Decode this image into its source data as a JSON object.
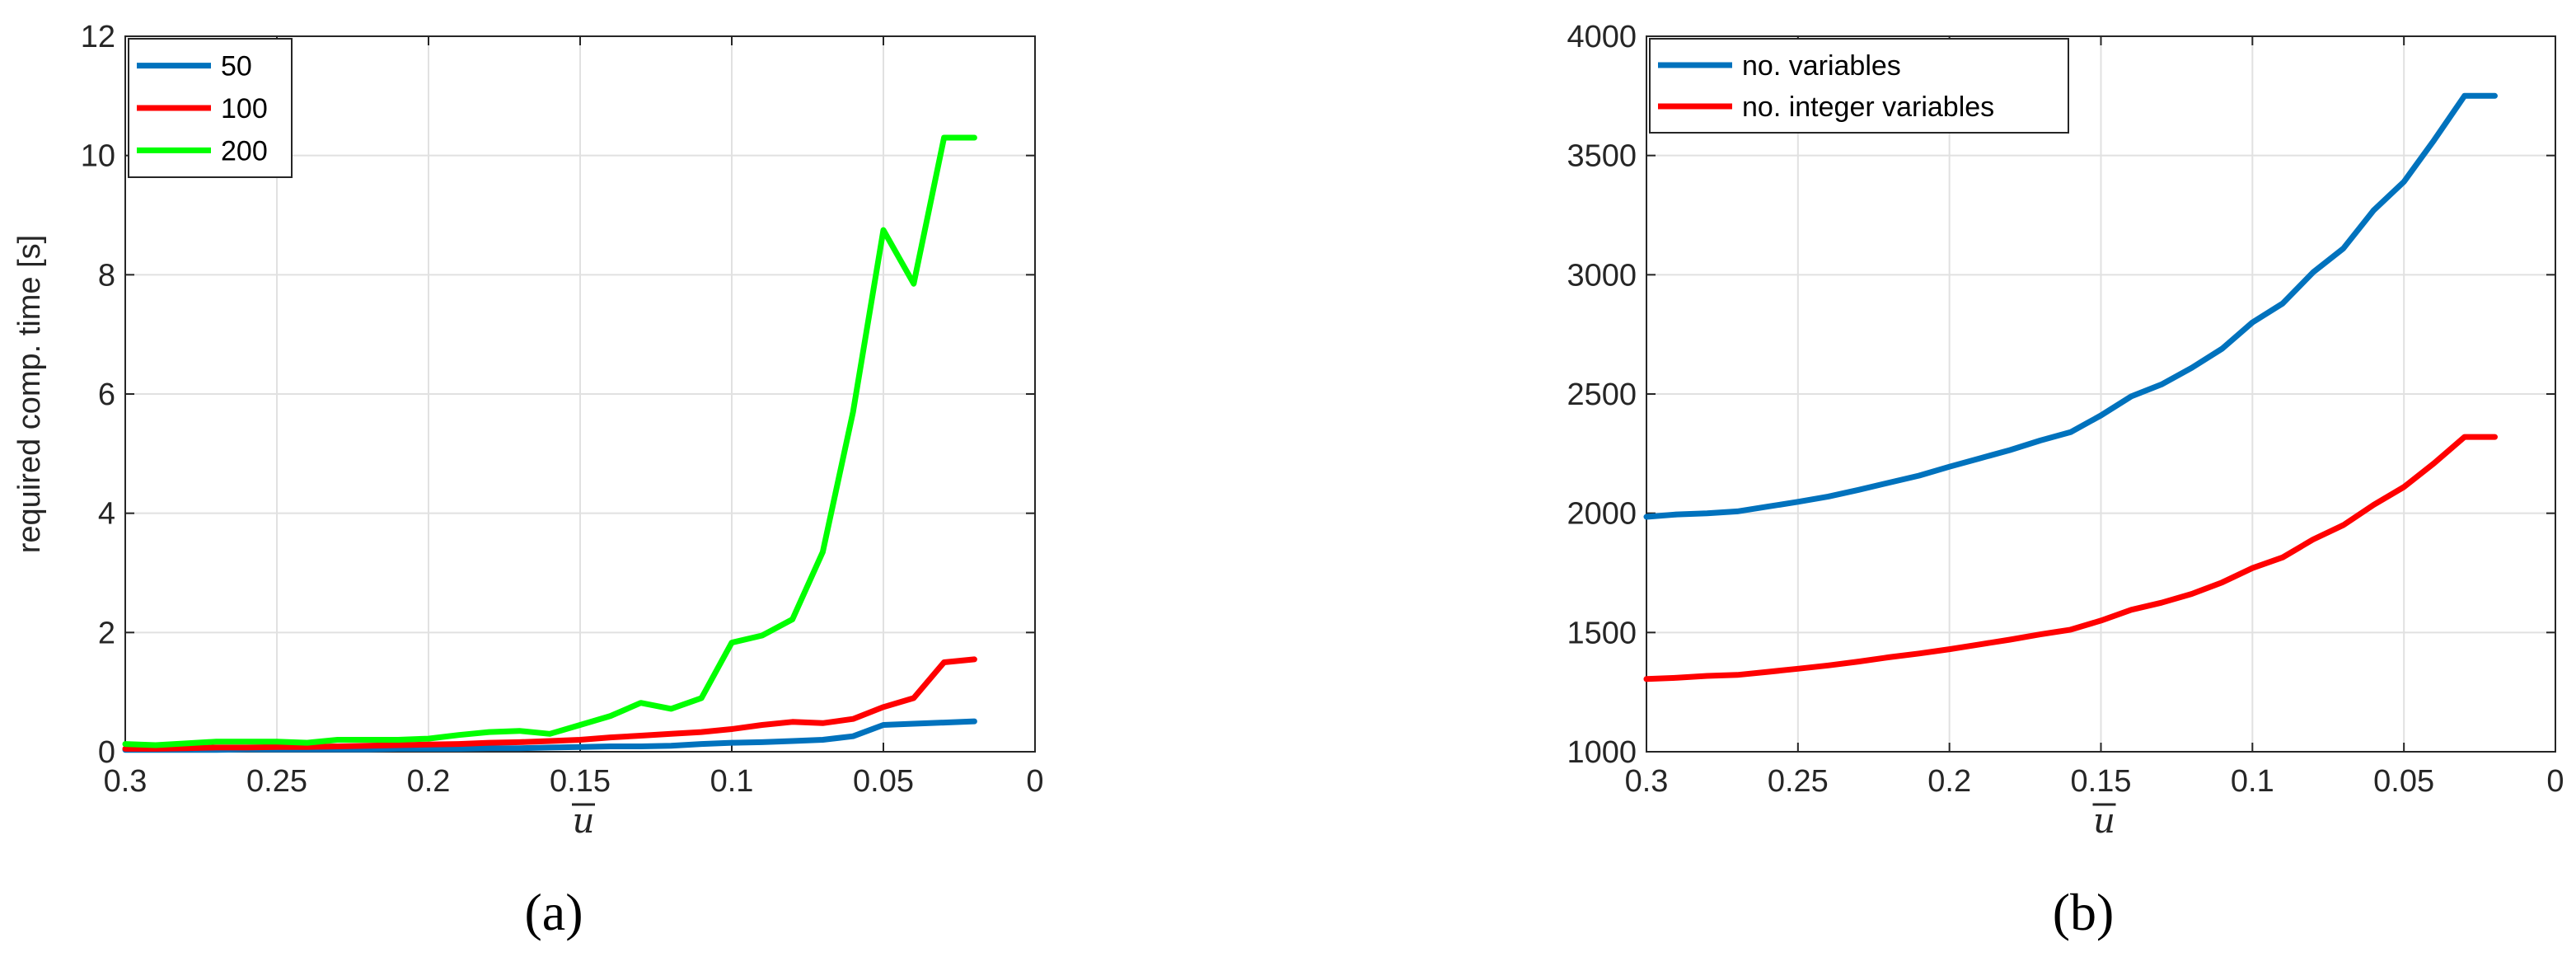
{
  "chart_data": [
    {
      "type": "line",
      "panel_label": "(a)",
      "xlabel": "u",
      "xlabel_overline": true,
      "ylabel": "required comp. time [s]",
      "xlim": [
        0.3,
        0
      ],
      "x_reversed": true,
      "ylim": [
        0,
        12
      ],
      "xticks": [
        "0.3",
        "0.25",
        "0.2",
        "0.15",
        "0.1",
        "0.05",
        "0"
      ],
      "yticks": [
        "0",
        "2",
        "4",
        "6",
        "8",
        "10",
        "12"
      ],
      "grid": true,
      "legend_position": "top-left",
      "x": [
        0.3,
        0.29,
        0.28,
        0.27,
        0.26,
        0.25,
        0.24,
        0.23,
        0.22,
        0.21,
        0.2,
        0.19,
        0.18,
        0.17,
        0.16,
        0.15,
        0.14,
        0.13,
        0.12,
        0.11,
        0.1,
        0.09,
        0.08,
        0.07,
        0.06,
        0.05,
        0.04,
        0.03,
        0.02
      ],
      "series": [
        {
          "name": "50",
          "color": "#0072BD",
          "values": [
            0.03,
            0.03,
            0.03,
            0.03,
            0.04,
            0.04,
            0.04,
            0.04,
            0.04,
            0.05,
            0.05,
            0.05,
            0.06,
            0.06,
            0.07,
            0.08,
            0.09,
            0.09,
            0.1,
            0.13,
            0.15,
            0.16,
            0.18,
            0.2,
            0.26,
            0.45,
            0.47,
            0.49,
            0.51
          ]
        },
        {
          "name": "100",
          "color": "#FF0000",
          "values": [
            0.05,
            0.05,
            0.06,
            0.07,
            0.07,
            0.08,
            0.08,
            0.09,
            0.1,
            0.11,
            0.12,
            0.13,
            0.15,
            0.16,
            0.18,
            0.2,
            0.24,
            0.27,
            0.3,
            0.33,
            0.38,
            0.45,
            0.5,
            0.48,
            0.55,
            0.75,
            0.9,
            1.5,
            1.55
          ]
        },
        {
          "name": "200",
          "color": "#00FF00",
          "values": [
            0.13,
            0.11,
            0.14,
            0.17,
            0.17,
            0.17,
            0.15,
            0.2,
            0.2,
            0.2,
            0.22,
            0.28,
            0.33,
            0.35,
            0.3,
            0.45,
            0.6,
            0.82,
            0.72,
            0.9,
            1.83,
            1.95,
            2.22,
            3.35,
            5.7,
            8.75,
            7.85,
            10.3,
            10.3
          ]
        }
      ]
    },
    {
      "type": "line",
      "panel_label": "(b)",
      "xlabel": "u",
      "xlabel_overline": true,
      "ylabel": "",
      "xlim": [
        0.3,
        0
      ],
      "x_reversed": true,
      "ylim": [
        1000,
        4000
      ],
      "xticks": [
        "0.3",
        "0.25",
        "0.2",
        "0.15",
        "0.1",
        "0.05",
        "0"
      ],
      "yticks": [
        "1000",
        "1500",
        "2000",
        "2500",
        "3000",
        "3500",
        "4000"
      ],
      "grid": true,
      "legend_position": "top-left",
      "x": [
        0.3,
        0.29,
        0.28,
        0.27,
        0.26,
        0.25,
        0.24,
        0.23,
        0.22,
        0.21,
        0.2,
        0.19,
        0.18,
        0.17,
        0.16,
        0.15,
        0.14,
        0.13,
        0.12,
        0.11,
        0.1,
        0.09,
        0.08,
        0.07,
        0.06,
        0.05,
        0.04,
        0.03,
        0.02
      ],
      "series": [
        {
          "name": "no. variables",
          "color": "#0072BD",
          "values": [
            1985,
            1995,
            2000,
            2008,
            2028,
            2048,
            2070,
            2098,
            2128,
            2158,
            2195,
            2230,
            2265,
            2305,
            2340,
            2410,
            2490,
            2540,
            2610,
            2690,
            2800,
            2880,
            3010,
            3110,
            3270,
            3390,
            3565,
            3750,
            3750
          ]
        },
        {
          "name": "no. integer variables",
          "color": "#FF0000",
          "values": [
            1305,
            1310,
            1318,
            1322,
            1335,
            1348,
            1362,
            1378,
            1396,
            1412,
            1430,
            1450,
            1470,
            1492,
            1512,
            1550,
            1595,
            1625,
            1662,
            1710,
            1770,
            1815,
            1890,
            1950,
            2035,
            2110,
            2210,
            2320,
            2320
          ]
        }
      ]
    }
  ]
}
